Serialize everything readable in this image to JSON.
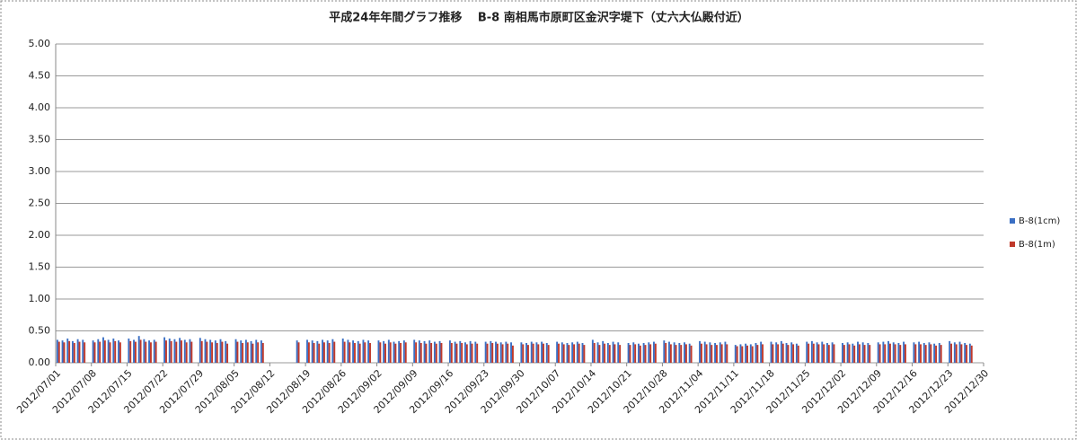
{
  "chart_data": {
    "type": "bar",
    "title": "平成24年年間グラフ推移　 B-8 南相馬市原町区金沢字堤下（丈六大仏殿付近）",
    "categories": [
      "2012/07/01",
      null,
      null,
      null,
      null,
      null,
      null,
      "2012/07/08",
      null,
      null,
      null,
      null,
      null,
      null,
      "2012/07/15",
      null,
      null,
      null,
      null,
      null,
      null,
      "2012/07/22",
      null,
      null,
      null,
      null,
      null,
      null,
      "2012/07/29",
      null,
      null,
      null,
      null,
      null,
      null,
      "2012/08/05",
      null,
      null,
      null,
      null,
      null,
      null,
      "2012/08/12",
      null,
      null,
      null,
      null,
      null,
      null,
      "2012/08/19",
      null,
      null,
      null,
      null,
      null,
      null,
      "2012/08/26",
      null,
      null,
      null,
      null,
      null,
      null,
      "2012/09/02",
      null,
      null,
      null,
      null,
      null,
      null,
      "2012/09/09",
      null,
      null,
      null,
      null,
      null,
      null,
      "2012/09/16",
      null,
      null,
      null,
      null,
      null,
      null,
      "2012/09/23",
      null,
      null,
      null,
      null,
      null,
      null,
      "2012/09/30",
      null,
      null,
      null,
      null,
      null,
      null,
      "2012/10/07",
      null,
      null,
      null,
      null,
      null,
      null,
      "2012/10/14",
      null,
      null,
      null,
      null,
      null,
      null,
      "2012/10/21",
      null,
      null,
      null,
      null,
      null,
      null,
      "2012/10/28",
      null,
      null,
      null,
      null,
      null,
      null,
      "2012/11/04",
      null,
      null,
      null,
      null,
      null,
      null,
      "2012/11/11",
      null,
      null,
      null,
      null,
      null,
      null,
      "2012/11/18",
      null,
      null,
      null,
      null,
      null,
      null,
      "2012/11/25",
      null,
      null,
      null,
      null,
      null,
      null,
      "2012/12/02",
      null,
      null,
      null,
      null,
      null,
      null,
      "2012/12/09",
      null,
      null,
      null,
      null,
      null,
      null,
      "2012/12/16",
      null,
      null,
      null,
      null,
      null,
      null,
      "2012/12/23",
      null,
      null,
      null,
      null,
      null,
      null,
      "2012/12/30"
    ],
    "series": [
      {
        "name": "B-8(1cm)",
        "color": "#3b6fc4",
        "values": [
          0.36,
          0.35,
          0.38,
          0.34,
          0.37,
          0.36,
          null,
          0.35,
          0.37,
          0.4,
          0.36,
          0.38,
          0.35,
          null,
          0.38,
          0.36,
          0.42,
          0.37,
          0.35,
          0.36,
          null,
          0.4,
          0.38,
          0.37,
          0.39,
          0.36,
          0.37,
          null,
          0.39,
          0.37,
          0.36,
          0.35,
          0.37,
          0.34,
          null,
          0.37,
          0.35,
          0.36,
          0.34,
          0.36,
          0.35,
          null,
          null,
          null,
          null,
          null,
          null,
          0.35,
          null,
          0.36,
          0.35,
          0.34,
          0.36,
          0.35,
          0.37,
          null,
          0.38,
          0.36,
          0.35,
          0.34,
          0.36,
          0.35,
          null,
          0.35,
          0.34,
          0.36,
          0.33,
          0.34,
          0.35,
          null,
          0.36,
          0.35,
          0.34,
          0.35,
          0.33,
          0.34,
          null,
          0.35,
          0.33,
          0.34,
          0.32,
          0.34,
          0.33,
          null,
          0.33,
          0.34,
          0.33,
          0.32,
          0.33,
          0.32,
          null,
          0.32,
          0.31,
          0.33,
          0.32,
          0.33,
          0.31,
          null,
          0.33,
          0.32,
          0.31,
          0.32,
          0.33,
          0.31,
          null,
          0.36,
          0.32,
          0.34,
          0.31,
          0.33,
          0.32,
          null,
          0.31,
          0.32,
          0.3,
          0.31,
          0.32,
          0.33,
          null,
          0.35,
          0.33,
          0.32,
          0.31,
          0.32,
          0.3,
          null,
          0.34,
          0.33,
          0.32,
          0.31,
          0.32,
          0.33,
          null,
          0.28,
          0.29,
          0.3,
          0.29,
          0.31,
          0.33,
          null,
          0.33,
          0.32,
          0.34,
          0.31,
          0.32,
          0.3,
          null,
          0.33,
          0.34,
          0.32,
          0.33,
          0.31,
          0.32,
          null,
          0.31,
          0.32,
          0.3,
          0.33,
          0.32,
          0.31,
          null,
          0.32,
          0.33,
          0.34,
          0.32,
          0.31,
          0.33,
          null,
          0.32,
          0.33,
          0.31,
          0.32,
          0.3,
          0.31,
          null,
          0.34,
          0.32,
          0.33,
          0.31,
          0.3,
          null,
          null,
          null
        ]
      },
      {
        "name": "B-8(1m)",
        "color": "#c0392b",
        "values": [
          0.33,
          0.32,
          0.34,
          0.31,
          0.33,
          0.32,
          null,
          0.32,
          0.33,
          0.35,
          0.32,
          0.34,
          0.32,
          null,
          0.34,
          0.33,
          0.36,
          0.33,
          0.32,
          0.33,
          null,
          0.35,
          0.34,
          0.33,
          0.35,
          0.32,
          0.33,
          null,
          0.34,
          0.33,
          0.32,
          0.31,
          0.33,
          0.3,
          null,
          0.33,
          0.31,
          0.32,
          0.3,
          0.32,
          0.31,
          null,
          null,
          null,
          null,
          null,
          null,
          0.32,
          null,
          0.32,
          0.31,
          0.3,
          0.32,
          0.31,
          0.33,
          null,
          0.33,
          0.32,
          0.31,
          0.3,
          0.32,
          0.31,
          null,
          0.32,
          0.3,
          0.32,
          0.3,
          0.31,
          0.32,
          null,
          0.32,
          0.31,
          0.3,
          0.31,
          0.3,
          0.31,
          null,
          0.31,
          0.3,
          0.31,
          0.29,
          0.3,
          0.3,
          null,
          0.3,
          0.31,
          0.3,
          0.29,
          0.3,
          0.27,
          null,
          0.29,
          0.28,
          0.3,
          0.29,
          0.3,
          0.28,
          null,
          0.3,
          0.29,
          0.28,
          0.29,
          0.3,
          0.28,
          null,
          0.31,
          0.28,
          0.3,
          0.28,
          0.29,
          0.28,
          null,
          0.28,
          0.29,
          0.27,
          0.28,
          0.29,
          0.3,
          null,
          0.31,
          0.29,
          0.28,
          0.28,
          0.29,
          0.27,
          null,
          0.3,
          0.29,
          0.28,
          0.28,
          0.29,
          0.29,
          null,
          0.26,
          0.26,
          0.27,
          0.26,
          0.28,
          0.29,
          null,
          0.29,
          0.29,
          0.3,
          0.28,
          0.29,
          0.27,
          null,
          0.3,
          0.3,
          0.29,
          0.29,
          0.28,
          0.29,
          null,
          0.28,
          0.29,
          0.27,
          0.29,
          0.28,
          0.28,
          null,
          0.29,
          0.29,
          0.3,
          0.29,
          0.28,
          0.29,
          null,
          0.29,
          0.29,
          0.28,
          0.29,
          0.27,
          0.28,
          null,
          0.3,
          0.29,
          0.29,
          0.28,
          0.27,
          null,
          null,
          null
        ]
      }
    ],
    "ylim": [
      0,
      5
    ],
    "yticks": [
      {
        "value": 0,
        "label": "0.00"
      },
      {
        "value": 0.5,
        "label": "0.50"
      },
      {
        "value": 1,
        "label": "1.00"
      },
      {
        "value": 1.5,
        "label": "1.50"
      },
      {
        "value": 2,
        "label": "2.00"
      },
      {
        "value": 2.5,
        "label": "2.50"
      },
      {
        "value": 3,
        "label": "3.00"
      },
      {
        "value": 3.5,
        "label": "3.50"
      },
      {
        "value": 4,
        "label": "4.00"
      },
      {
        "value": 4.5,
        "label": "4.50"
      },
      {
        "value": 5,
        "label": "5.00"
      }
    ],
    "grid": true,
    "legend": "right"
  }
}
